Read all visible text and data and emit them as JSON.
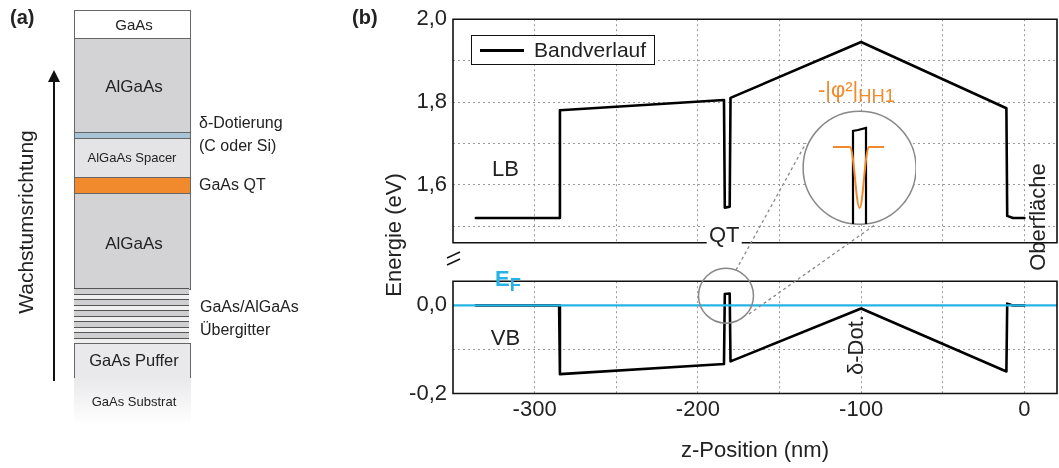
{
  "chart_data": [
    {
      "type": "other",
      "title": "(a)",
      "ylabel": "Wachstumsrichtung",
      "annotations": [
        "GaAs",
        "AlGaAs",
        "AlGaAs Spacer",
        "AlGaAs",
        "GaAs Puffer",
        "GaAs Substrat",
        "δ-Dotierung",
        "(C oder Si)",
        "GaAs QT",
        "GaAs/AlGaAs",
        "Übergitter"
      ]
    },
    {
      "type": "line",
      "title": "(b)",
      "ylabel": "Energie (eV)",
      "series": [
        {
          "name": "Bandverlauf",
          "color": "#000000",
          "x": [
            -336,
            -285,
            -284.5,
            -184,
            -183.5,
            -180.5,
            -180,
            -100,
            -11,
            -10.5,
            -7,
            0
          ],
          "values": [
            1.52,
            1.52,
            1.78,
            1.805,
            1.545,
            1.547,
            1.81,
            1.945,
            1.785,
            1.525,
            1.52,
            1.52
          ]
        }
      ],
      "xlim": [
        -350,
        20
      ],
      "xticks": [
        -300,
        {
          "value": -250,
          "label": null
        },
        -200,
        {
          "value": -150,
          "label": null
        },
        -100,
        {
          "value": -50,
          "label": null
        },
        0
      ],
      "ylim": [
        1.46,
        2.0
      ],
      "yticks": [
        {
          "value": 1.5,
          "label": null
        },
        {
          "value": 1.6,
          "label": "1,6"
        },
        {
          "value": 1.7,
          "label": null
        },
        {
          "value": 1.8,
          "label": "1,8"
        },
        {
          "value": 1.9,
          "label": null
        },
        {
          "value": 2.0,
          "label": "2,0"
        }
      ],
      "grid": true,
      "legend": "top left",
      "tick_labels": "y",
      "marker": "none",
      "line_style": "solid",
      "annotations": [
        "LB",
        "QT",
        "-|φ²|$_{HH1}$",
        "Oberfläche"
      ]
    },
    {
      "type": "line",
      "xlabel": "z-Position (nm)",
      "series": [
        {
          "color": "#000000",
          "x": [
            -336,
            -285,
            -284.5,
            -184,
            -183.5,
            -180.5,
            -180,
            -100,
            -11,
            -10.5,
            -7,
            0
          ],
          "values": [
            0.0,
            0.0,
            -0.156,
            -0.133,
            0.026,
            0.027,
            -0.127,
            -0.007,
            -0.15,
            0.004,
            0.0,
            0.0
          ]
        }
      ],
      "xlim": [
        -350,
        20
      ],
      "xticks": [
        -300,
        {
          "value": -250,
          "label": null
        },
        -200,
        {
          "value": -150,
          "label": null
        },
        -100,
        {
          "value": -50,
          "label": null
        },
        0
      ],
      "ylim": [
        -0.2,
        0.055
      ],
      "yticks": [
        {
          "value": -0.2,
          "label": "-0,2"
        },
        {
          "value": -0.1,
          "label": null
        },
        {
          "value": 0.0,
          "label": "0,0"
        }
      ],
      "grid": true,
      "marker": "none",
      "line_style": "solid",
      "ref_lines": [
        {
          "axis": "y",
          "value": 0,
          "label": "E$_{F}$",
          "color": "#27b4e4"
        }
      ],
      "annotations": [
        "VB",
        "δ-Dot."
      ]
    }
  ]
}
